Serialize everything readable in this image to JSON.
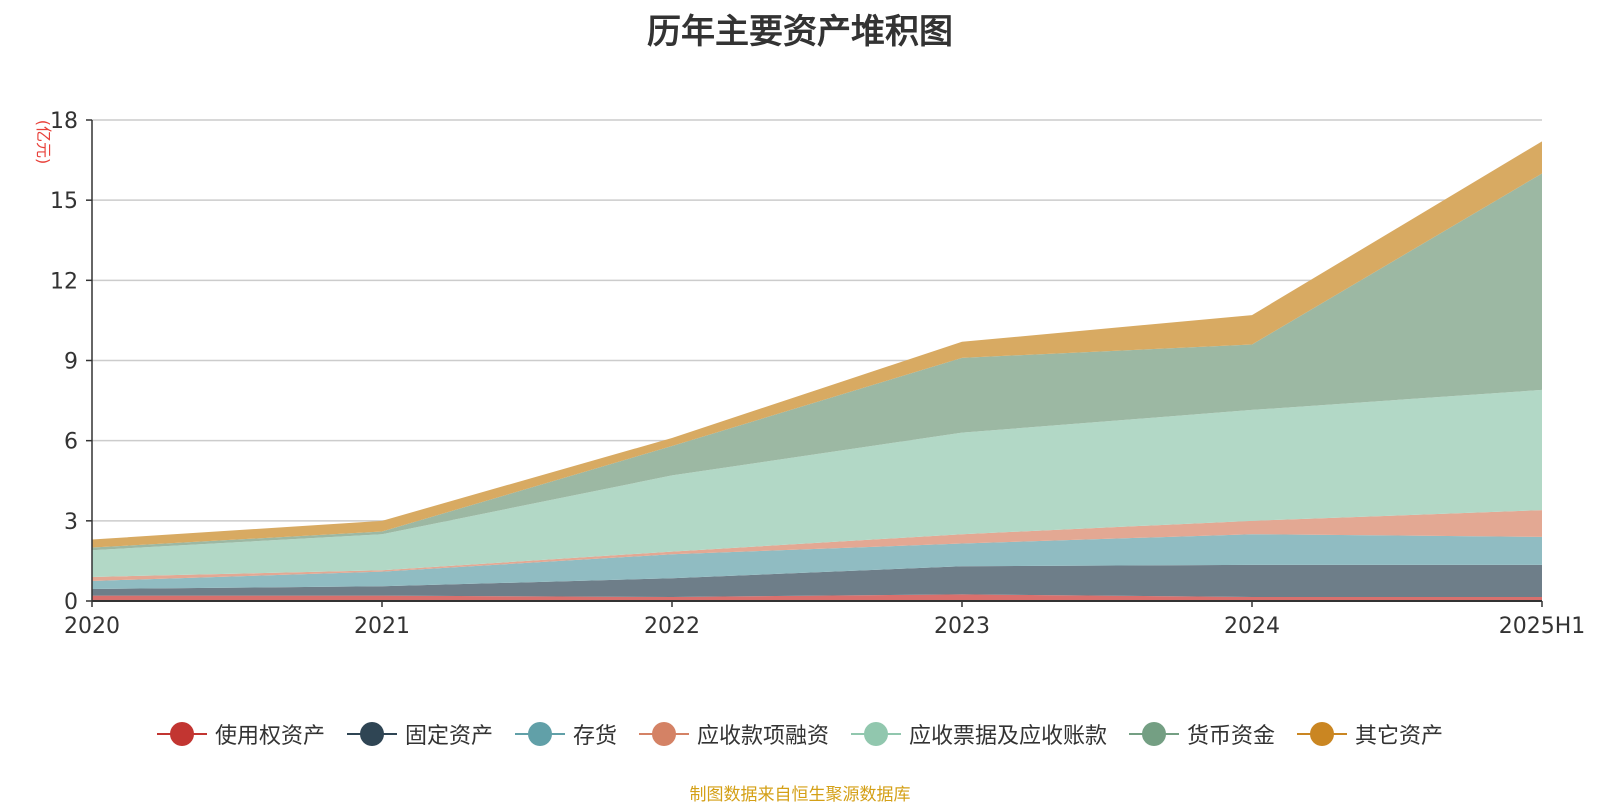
{
  "title": "历年主要资产堆积图",
  "source": "制图数据来自恒生聚源数据库",
  "chart_data": {
    "type": "area",
    "stacked": true,
    "title": "历年主要资产堆积图",
    "ylabel": "(亿元)",
    "ylim": [
      0,
      18
    ],
    "yticks": [
      0,
      3,
      6,
      9,
      12,
      15,
      18
    ],
    "grid": true,
    "legend_position": "bottom",
    "categories": [
      "2020",
      "2021",
      "2022",
      "2023",
      "2024",
      "2025H1"
    ],
    "series": [
      {
        "name": "使用权资产",
        "color": "#c23531",
        "fill": "#d9706d",
        "values": [
          0.2,
          0.2,
          0.15,
          0.25,
          0.15,
          0.15
        ]
      },
      {
        "name": "固定资产",
        "color": "#2f4554",
        "fill": "#6e7e89",
        "values": [
          0.25,
          0.35,
          0.7,
          1.05,
          1.2,
          1.2
        ]
      },
      {
        "name": "存货",
        "color": "#61a0a8",
        "fill": "#90bcc2",
        "values": [
          0.3,
          0.55,
          0.9,
          0.85,
          1.15,
          1.05
        ]
      },
      {
        "name": "应收款项融资",
        "color": "#d48265",
        "fill": "#e3a893",
        "values": [
          0.15,
          0.05,
          0.1,
          0.35,
          0.5,
          1.0
        ]
      },
      {
        "name": "应收票据及应收账款",
        "color": "#91c7ae",
        "fill": "#b2d8c6",
        "values": [
          1.0,
          1.35,
          2.85,
          3.8,
          4.15,
          4.5
        ]
      },
      {
        "name": "货币资金",
        "color": "#749f83",
        "fill": "#9cb8a3",
        "values": [
          0.1,
          0.1,
          1.1,
          2.8,
          2.45,
          8.1
        ]
      },
      {
        "name": "其它资产",
        "color": "#ca8622",
        "fill": "#d8aa62",
        "values": [
          0.3,
          0.4,
          0.3,
          0.6,
          1.1,
          1.2
        ]
      }
    ]
  }
}
